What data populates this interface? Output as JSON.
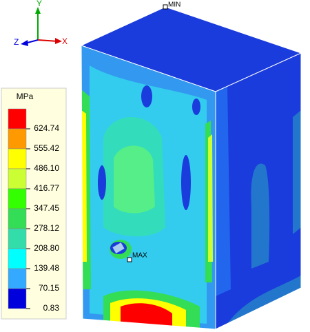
{
  "triad": {
    "y": "Y",
    "x": "X",
    "z": "Z"
  },
  "markers": {
    "min": "MIN",
    "max": "MAX"
  },
  "legend": {
    "unit": "MPa",
    "levels": [
      {
        "label": "624.74",
        "color": "#ff0000"
      },
      {
        "label": "555.42",
        "color": "#ff9900"
      },
      {
        "label": "486.10",
        "color": "#ffff00"
      },
      {
        "label": "416.77",
        "color": "#ccff33"
      },
      {
        "label": "347.45",
        "color": "#33ff00"
      },
      {
        "label": "278.12",
        "color": "#33dd55"
      },
      {
        "label": "208.80",
        "color": "#33ddaa"
      },
      {
        "label": "139.48",
        "color": "#00ffff"
      },
      {
        "label": "70.15",
        "color": "#33aaff"
      },
      {
        "label": "0.83",
        "color": "#0000dd"
      }
    ]
  }
}
